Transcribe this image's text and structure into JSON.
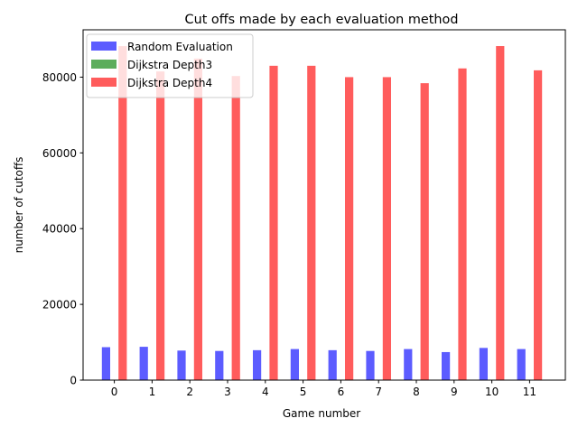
{
  "chart_data": {
    "type": "bar",
    "title": "Cut offs made by each evaluation method",
    "xlabel": "Game number",
    "ylabel": "number of cutoffs",
    "categories": [
      "0",
      "1",
      "2",
      "3",
      "4",
      "5",
      "6",
      "7",
      "8",
      "9",
      "10",
      "11"
    ],
    "x_ticks": [
      "0",
      "1",
      "2",
      "3",
      "4",
      "5",
      "6",
      "7",
      "8",
      "9",
      "10",
      "11"
    ],
    "y_ticks": [
      0,
      20000,
      40000,
      60000,
      80000
    ],
    "ylim": [
      0,
      92500
    ],
    "grid": false,
    "legend_position": "upper-left",
    "series": [
      {
        "name": "Random Evaluation",
        "color": "#3333ff",
        "values": [
          8700,
          8800,
          7800,
          7700,
          7900,
          8200,
          7900,
          7700,
          8200,
          7400,
          8500,
          8200
        ]
      },
      {
        "name": "Dijkstra Depth3",
        "color": "#339933",
        "values": [
          0,
          0,
          0,
          0,
          0,
          0,
          0,
          0,
          0,
          0,
          0,
          0
        ]
      },
      {
        "name": "Dijkstra Depth4",
        "color": "#ff3333",
        "values": [
          88200,
          81500,
          84900,
          80300,
          83000,
          83000,
          80000,
          80000,
          78400,
          82300,
          88200,
          81800
        ]
      }
    ]
  }
}
